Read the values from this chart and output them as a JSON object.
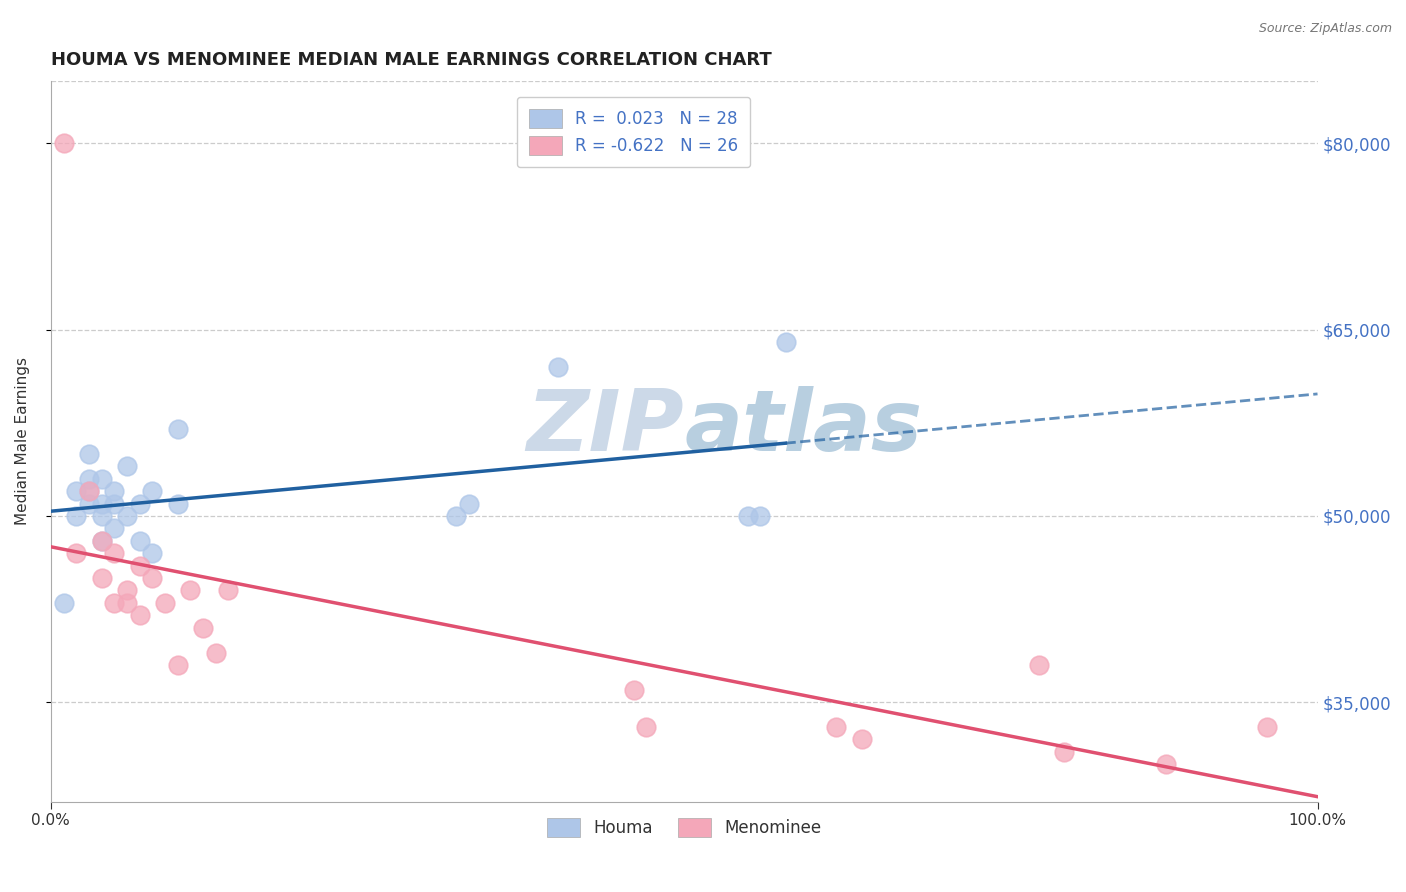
{
  "title": "HOUMA VS MENOMINEE MEDIAN MALE EARNINGS CORRELATION CHART",
  "source_text": "Source: ZipAtlas.com",
  "ylabel": "Median Male Earnings",
  "xlim": [
    0.0,
    1.0
  ],
  "ylim": [
    27000,
    85000
  ],
  "yticks": [
    35000,
    50000,
    65000,
    80000
  ],
  "ytick_labels": [
    "$35,000",
    "$50,000",
    "$65,000",
    "$80,000"
  ],
  "grid_color": "#cccccc",
  "background_color": "#ffffff",
  "houma_color": "#aec6e8",
  "menominee_color": "#f4a7b9",
  "houma_line_color": "#2060a0",
  "menominee_line_color": "#e05070",
  "houma_R": 0.023,
  "houma_N": 28,
  "menominee_R": -0.622,
  "menominee_N": 26,
  "houma_x": [
    0.01,
    0.02,
    0.02,
    0.03,
    0.03,
    0.03,
    0.03,
    0.04,
    0.04,
    0.04,
    0.04,
    0.05,
    0.05,
    0.05,
    0.06,
    0.06,
    0.07,
    0.07,
    0.08,
    0.08,
    0.1,
    0.1,
    0.32,
    0.33,
    0.4,
    0.55,
    0.56,
    0.58
  ],
  "houma_y": [
    43000,
    50000,
    52000,
    51000,
    52000,
    53000,
    55000,
    48000,
    50000,
    51000,
    53000,
    49000,
    51000,
    52000,
    50000,
    54000,
    48000,
    51000,
    47000,
    52000,
    51000,
    57000,
    50000,
    51000,
    62000,
    50000,
    50000,
    64000
  ],
  "menominee_x": [
    0.01,
    0.02,
    0.03,
    0.04,
    0.04,
    0.05,
    0.05,
    0.06,
    0.06,
    0.07,
    0.07,
    0.08,
    0.09,
    0.1,
    0.11,
    0.12,
    0.13,
    0.14,
    0.46,
    0.47,
    0.62,
    0.64,
    0.78,
    0.8,
    0.88,
    0.96
  ],
  "menominee_y": [
    80000,
    47000,
    52000,
    48000,
    45000,
    43000,
    47000,
    44000,
    43000,
    46000,
    42000,
    45000,
    43000,
    38000,
    44000,
    41000,
    39000,
    44000,
    36000,
    33000,
    33000,
    32000,
    38000,
    31000,
    30000,
    33000
  ],
  "title_fontsize": 13,
  "label_fontsize": 11,
  "tick_fontsize": 11,
  "legend_fontsize": 12,
  "watermark_color": "#ccd9e8",
  "watermark_fontsize": 52,
  "yaxis_label_color": "#4472c4"
}
